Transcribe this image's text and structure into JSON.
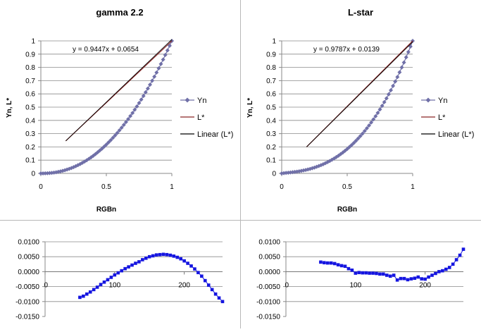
{
  "chart_data": [
    {
      "type": "scatter",
      "title": "gamma 2.2",
      "xlabel": "RGBn",
      "ylabel": "Yn, L*",
      "xlim": [
        0,
        1
      ],
      "ylim": [
        0,
        1
      ],
      "x_ticks": [
        "0",
        "0.5",
        "1"
      ],
      "y_ticks": [
        "0",
        "0.1",
        "0.2",
        "0.3",
        "0.4",
        "0.5",
        "0.6",
        "0.7",
        "0.8",
        "0.9",
        "1"
      ],
      "grid": "horizontal",
      "legend": "right",
      "legend_entries": [
        {
          "label": "Yn",
          "color": "#7070a8",
          "marker": "diamond"
        },
        {
          "label": "L*",
          "color": "#8b2525",
          "marker": "line"
        },
        {
          "label": "Linear (L*)",
          "color": "#000000",
          "marker": "line"
        }
      ],
      "equation": "y = 0.9447x + 0.0654",
      "series": [
        {
          "name": "Yn",
          "gamma": 2.2,
          "x_start": 0,
          "x_end": 1,
          "points": 60
        },
        {
          "name": "L*",
          "x": [
            0.19,
            1.0
          ],
          "y": [
            0.2449,
            1.0
          ]
        },
        {
          "name": "Linear (L*)",
          "slope": 0.9447,
          "intercept": 0.0654,
          "x": [
            0.19,
            1.0
          ]
        }
      ]
    },
    {
      "type": "scatter",
      "title": "L-star",
      "xlabel": "RGBn",
      "ylabel": "Yn, L*",
      "xlim": [
        0,
        1
      ],
      "ylim": [
        0,
        1
      ],
      "x_ticks": [
        "0",
        "0.5",
        "1"
      ],
      "y_ticks": [
        "0",
        "0.1",
        "0.2",
        "0.3",
        "0.4",
        "0.5",
        "0.6",
        "0.7",
        "0.8",
        "0.9",
        "1"
      ],
      "grid": "horizontal",
      "legend": "right",
      "legend_entries": [
        {
          "label": "Yn",
          "color": "#7070a8",
          "marker": "diamond"
        },
        {
          "label": "L*",
          "color": "#8b2525",
          "marker": "line"
        },
        {
          "label": "Linear (L*)",
          "color": "#000000",
          "marker": "line"
        }
      ],
      "equation": "y = 0.9787x + 0.0139",
      "series": [
        {
          "name": "Yn",
          "lstar": true,
          "x_start": 0,
          "x_end": 1,
          "points": 60
        },
        {
          "name": "L*",
          "x": [
            0.19,
            1.0
          ],
          "y": [
            0.2,
            1.0
          ]
        },
        {
          "name": "Linear (L*)",
          "slope": 0.9787,
          "intercept": 0.0139,
          "x": [
            0.19,
            1.0
          ]
        }
      ]
    },
    {
      "type": "scatter",
      "xlim": [
        0,
        255
      ],
      "ylim": [
        -0.015,
        0.01
      ],
      "x_ticks": [
        {
          "value": 0,
          "label": "0"
        },
        {
          "value": 100,
          "label": "100"
        },
        {
          "value": 200,
          "label": "200"
        }
      ],
      "y_ticks": [
        "-0.0150",
        "-0.0100",
        "-0.0050",
        "0.0000",
        "0.0050",
        "0.0100"
      ],
      "y_tick_values": [
        -0.015,
        -0.01,
        -0.005,
        0,
        0.005,
        0.01
      ],
      "grid": "horizontal",
      "color": "#1515e0",
      "series": [
        {
          "x": [
            50,
            55,
            60,
            65,
            70,
            75,
            80,
            85,
            90,
            95,
            100,
            105,
            110,
            115,
            120,
            125,
            130,
            135,
            140,
            145,
            150,
            155,
            160,
            165,
            170,
            175,
            180,
            185,
            190,
            195,
            200,
            205,
            210,
            215,
            220,
            225,
            230,
            235,
            240,
            245,
            250,
            255
          ],
          "y": [
            -0.0086,
            -0.0082,
            -0.0075,
            -0.0068,
            -0.006,
            -0.0052,
            -0.0043,
            -0.0035,
            -0.0027,
            -0.0019,
            -0.0011,
            -0.0004,
            0.0003,
            0.001,
            0.0016,
            0.0022,
            0.0028,
            0.0033,
            0.004,
            0.0045,
            0.005,
            0.0053,
            0.0056,
            0.0057,
            0.0058,
            0.0057,
            0.0055,
            0.0052,
            0.0048,
            0.0043,
            0.0036,
            0.0028,
            0.0019,
            0.0009,
            -0.0003,
            -0.0015,
            -0.003,
            -0.0045,
            -0.006,
            -0.0075,
            -0.0088,
            -0.01
          ]
        }
      ]
    },
    {
      "type": "scatter",
      "xlim": [
        0,
        255
      ],
      "ylim": [
        -0.015,
        0.01
      ],
      "x_ticks": [
        {
          "value": 0,
          "label": "0"
        },
        {
          "value": 100,
          "label": "100"
        },
        {
          "value": 200,
          "label": "200"
        }
      ],
      "y_ticks": [
        "-0.0150",
        "-0.0100",
        "-0.0050",
        "0.0000",
        "0.0050",
        "0.0100"
      ],
      "y_tick_values": [
        -0.015,
        -0.01,
        -0.005,
        0,
        0.005,
        0.01
      ],
      "grid": "horizontal",
      "color": "#1515e0",
      "series": [
        {
          "x": [
            50,
            55,
            60,
            65,
            70,
            75,
            80,
            85,
            90,
            95,
            100,
            105,
            110,
            115,
            120,
            125,
            130,
            135,
            140,
            145,
            150,
            155,
            160,
            165,
            170,
            175,
            180,
            185,
            190,
            195,
            200,
            205,
            210,
            215,
            220,
            225,
            230,
            235,
            240,
            245,
            250,
            255
          ],
          "y": [
            0.0032,
            0.003,
            0.0029,
            0.0029,
            0.0027,
            0.0023,
            0.002,
            0.0018,
            0.001,
            0.0005,
            -0.0005,
            -0.0003,
            -0.0004,
            -0.0004,
            -0.0005,
            -0.0005,
            -0.0006,
            -0.0008,
            -0.0008,
            -0.0012,
            -0.0015,
            -0.0012,
            -0.0028,
            -0.0023,
            -0.0023,
            -0.0027,
            -0.0024,
            -0.0022,
            -0.0018,
            -0.0024,
            -0.0025,
            -0.0018,
            -0.0012,
            -0.0006,
            0.0,
            0.0003,
            0.0008,
            0.0014,
            0.0025,
            0.004,
            0.0055,
            0.0075
          ]
        }
      ]
    }
  ]
}
